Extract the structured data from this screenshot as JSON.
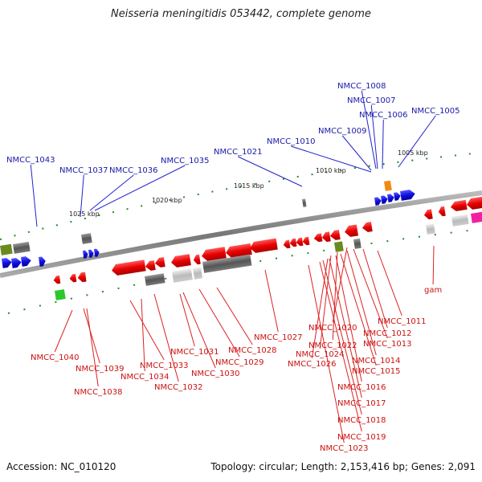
{
  "title": "Neisseria meningitidis 053442, complete genome",
  "footer": {
    "accession": "Accession: NC_010120",
    "stats": "Topology: circular; Length: 2,153,416 bp; Genes: 2,091"
  },
  "colors": {
    "forward": "#1010e0",
    "reverse": "#e80000",
    "rna": "#777777",
    "label_forward": "#1a1aa8",
    "label_reverse": "#cc1111",
    "backbone": "#888888",
    "tick": "#228822"
  },
  "scale_labels": [
    "1005 kbp",
    "1010 kbp",
    "1015 kbp",
    "1020 kbp",
    "1025 kbp"
  ],
  "forward_labels": [
    "NMCC_1008",
    "NMCC_1007",
    "NMCC_1006",
    "NMCC_1005",
    "NMCC_1009",
    "NMCC_1010",
    "NMCC_1021",
    "NMCC_1043",
    "NMCC_1037",
    "NMCC_1036",
    "NMCC_1035"
  ],
  "reverse_labels": [
    "NMCC_1011",
    "NMCC_1012",
    "NMCC_1020",
    "NMCC_1013",
    "NMCC_1027",
    "NMCC_1022",
    "NMCC_1031",
    "NMCC_1028",
    "NMCC_1024",
    "NMCC_1014",
    "NMCC_1040",
    "NMCC_1029",
    "NMCC_1026",
    "NMCC_1033",
    "NMCC_1015",
    "NMCC_1039",
    "NMCC_1030",
    "NMCC_1034",
    "NMCC_1016",
    "NMCC_1032",
    "NMCC_1038",
    "NMCC_1017",
    "NMCC_1018",
    "NMCC_1019",
    "NMCC_1023",
    "gam"
  ]
}
